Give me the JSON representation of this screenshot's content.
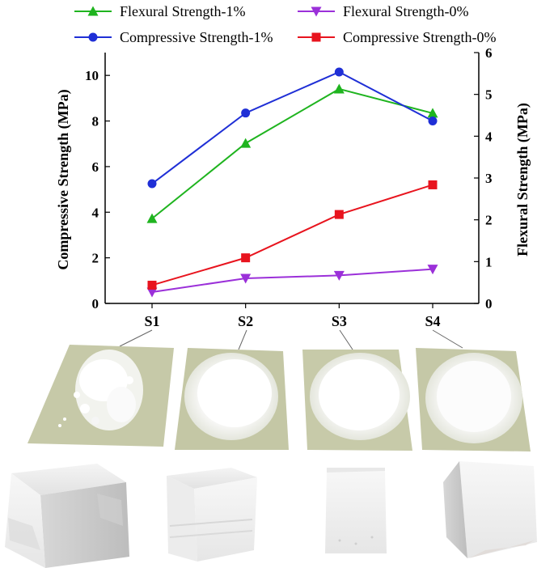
{
  "chart_data": {
    "type": "line",
    "title": "",
    "categories": [
      "S1",
      "S2",
      "S3",
      "S4"
    ],
    "xlabel": "",
    "ylabel_left": "Compressive Strength (MPa)",
    "ylabel_right": "Flexural Strength (MPa)",
    "ylim_left": [
      0,
      11
    ],
    "yticks_left": [
      0,
      2,
      4,
      6,
      8,
      10
    ],
    "ylim_right": [
      0,
      6
    ],
    "yticks_right": [
      0,
      1,
      2,
      3,
      4,
      5,
      6
    ],
    "legend_position": "top",
    "series": [
      {
        "name": "Flexural Strength-1%",
        "axis": "right",
        "marker": "triangle-up",
        "color": "#1fb41f",
        "values": [
          2.03,
          3.83,
          5.13,
          4.55
        ]
      },
      {
        "name": "Flexural Strength-0%",
        "axis": "right",
        "marker": "triangle-down",
        "color": "#9b30d9",
        "values": [
          0.27,
          0.6,
          0.67,
          0.82
        ]
      },
      {
        "name": "Compressive Strength-1%",
        "axis": "left",
        "marker": "circle",
        "color": "#1f2fd6",
        "values": [
          5.25,
          8.35,
          10.15,
          8.0
        ]
      },
      {
        "name": "Compressive Strength-0%",
        "axis": "left",
        "marker": "square",
        "color": "#e8141e",
        "values": [
          0.8,
          2.0,
          3.9,
          5.2
        ]
      }
    ]
  },
  "samples": [
    "S1",
    "S2",
    "S3",
    "S4"
  ]
}
